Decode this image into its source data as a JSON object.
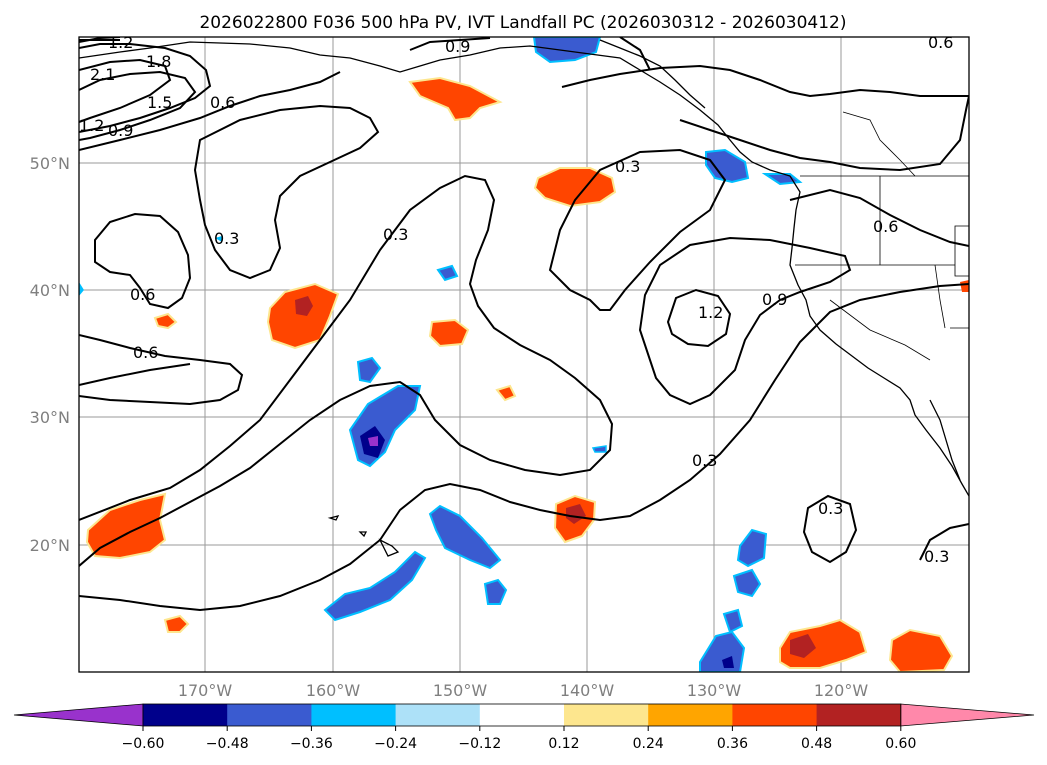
{
  "title": "2026022800 F036 500 hPa PV, IVT Landfall PC (2026030312 - 2026030412)",
  "lat_labels": [
    "50°N",
    "40°N",
    "30°N",
    "20°N"
  ],
  "lon_labels": [
    "170°W",
    "160°W",
    "150°W",
    "140°W",
    "130°W",
    "120°W"
  ],
  "colorbar": {
    "tick_labels": [
      "−0.60",
      "−0.48",
      "−0.36",
      "−0.24",
      "−0.12",
      "0.12",
      "0.24",
      "0.36",
      "0.48",
      "0.60"
    ],
    "colors": [
      "#9932cc",
      "#00008b",
      "#3a5bd0",
      "#00bfff",
      "#ade1f8",
      "#ffffff",
      "#fde68e",
      "#ffa500",
      "#ff4500",
      "#b22222",
      "#ff88aa"
    ]
  },
  "contour_labels": [
    "1.2",
    "1.8",
    "2.1",
    "1.5",
    "1.2",
    "0.9",
    "0.6",
    "0.9",
    "0.6",
    "0.3",
    "0.6",
    "0.6",
    "0.3",
    "0.3",
    "0.6",
    "1.2",
    "0.9",
    "0.3",
    "0.3",
    "0.3"
  ]
}
